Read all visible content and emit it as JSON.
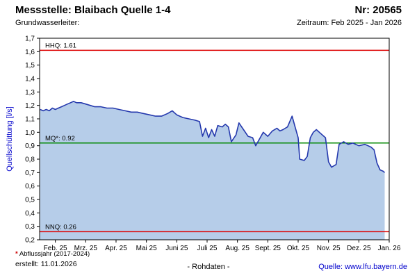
{
  "header": {
    "title": "Messstelle: Blaibach Quelle 1-4",
    "number_label": "Nr: 20565",
    "subtitle_left": "Grundwasserleiter:",
    "subtitle_right": "Zeitraum: Feb 2025 - Jan 2026"
  },
  "footer": {
    "note_star": "*",
    "note_text": "Abflussjahr (2017-2024)",
    "created": "erstellt: 11.01.2026",
    "center": "- Rohdaten -",
    "source": "Quelle: www.lfu.bayern.de"
  },
  "chart_data": {
    "type": "area",
    "title": "",
    "xlabel": "",
    "ylabel": "Quellschüttung [l/s]",
    "ylabel_color": "#0000cc",
    "ylim": [
      0.2,
      1.7
    ],
    "grid": false,
    "legend": "none",
    "ytick_labels": [
      "0,2",
      "0,3",
      "0,4",
      "0,5",
      "0,6",
      "0,7",
      "0,8",
      "0,9",
      "1,0",
      "1,1",
      "1,2",
      "1,3",
      "1,4",
      "1,5",
      "1,6",
      "1,7"
    ],
    "xtick_labels": [
      "Feb. 25",
      "Mrz. 25",
      "Apr. 25",
      "Mai 25",
      "Juni 25",
      "Juli 25",
      "Aug. 25",
      "Sept. 25",
      "Okt. 25",
      "Nov. 25",
      "Dez. 25",
      "Jan. 26"
    ],
    "reference_lines": [
      {
        "name": "HHQ",
        "label": "HHQ: 1.61",
        "value": 1.61,
        "color": "#dd0000"
      },
      {
        "name": "MQ",
        "label": "MQ*: 0.92",
        "value": 0.92,
        "color": "#008800"
      },
      {
        "name": "NNQ",
        "label": "NNQ: 0.26",
        "value": 0.26,
        "color": "#dd0000"
      }
    ],
    "series": [
      {
        "name": "Quellschüttung Rohdaten",
        "x_unit": "months since Feb 2025",
        "line_color": "#2438ad",
        "fill_color": "#b6cde9",
        "points": [
          [
            0,
            1.17
          ],
          [
            0.1,
            1.16
          ],
          [
            0.2,
            1.17
          ],
          [
            0.3,
            1.16
          ],
          [
            0.4,
            1.18
          ],
          [
            0.5,
            1.17
          ],
          [
            0.6,
            1.18
          ],
          [
            0.7,
            1.19
          ],
          [
            0.8,
            1.2
          ],
          [
            0.9,
            1.21
          ],
          [
            1,
            1.22
          ],
          [
            1.1,
            1.23
          ],
          [
            1.2,
            1.22
          ],
          [
            1.35,
            1.22
          ],
          [
            1.5,
            1.21
          ],
          [
            1.65,
            1.2
          ],
          [
            1.8,
            1.19
          ],
          [
            2,
            1.19
          ],
          [
            2.2,
            1.18
          ],
          [
            2.4,
            1.18
          ],
          [
            2.6,
            1.17
          ],
          [
            2.8,
            1.16
          ],
          [
            3,
            1.15
          ],
          [
            3.2,
            1.15
          ],
          [
            3.4,
            1.14
          ],
          [
            3.6,
            1.13
          ],
          [
            3.8,
            1.12
          ],
          [
            4,
            1.12
          ],
          [
            4.2,
            1.14
          ],
          [
            4.35,
            1.16
          ],
          [
            4.5,
            1.13
          ],
          [
            4.7,
            1.11
          ],
          [
            4.9,
            1.1
          ],
          [
            5.1,
            1.09
          ],
          [
            5.25,
            1.08
          ],
          [
            5.35,
            0.97
          ],
          [
            5.45,
            1.03
          ],
          [
            5.55,
            0.96
          ],
          [
            5.65,
            1.02
          ],
          [
            5.75,
            0.97
          ],
          [
            5.85,
            1.05
          ],
          [
            6,
            1.04
          ],
          [
            6.1,
            1.06
          ],
          [
            6.2,
            1.04
          ],
          [
            6.3,
            0.93
          ],
          [
            6.45,
            0.98
          ],
          [
            6.55,
            1.07
          ],
          [
            6.7,
            1.02
          ],
          [
            6.85,
            0.97
          ],
          [
            7,
            0.96
          ],
          [
            7.1,
            0.9
          ],
          [
            7.25,
            0.96
          ],
          [
            7.35,
            1.0
          ],
          [
            7.5,
            0.97
          ],
          [
            7.65,
            1.01
          ],
          [
            7.8,
            1.03
          ],
          [
            7.9,
            1.01
          ],
          [
            8,
            1.02
          ],
          [
            8.15,
            1.04
          ],
          [
            8.3,
            1.12
          ],
          [
            8.4,
            1.04
          ],
          [
            8.5,
            0.96
          ],
          [
            8.55,
            0.8
          ],
          [
            8.7,
            0.79
          ],
          [
            8.8,
            0.82
          ],
          [
            8.9,
            0.96
          ],
          [
            9,
            1.0
          ],
          [
            9.1,
            1.02
          ],
          [
            9.25,
            0.99
          ],
          [
            9.4,
            0.96
          ],
          [
            9.5,
            0.78
          ],
          [
            9.6,
            0.74
          ],
          [
            9.75,
            0.76
          ],
          [
            9.85,
            0.91
          ],
          [
            10,
            0.93
          ],
          [
            10.15,
            0.91
          ],
          [
            10.3,
            0.92
          ],
          [
            10.5,
            0.9
          ],
          [
            10.7,
            0.91
          ],
          [
            10.9,
            0.89
          ],
          [
            11,
            0.87
          ],
          [
            11.1,
            0.77
          ],
          [
            11.2,
            0.72
          ],
          [
            11.3,
            0.71
          ],
          [
            11.35,
            0.7
          ]
        ]
      }
    ]
  }
}
